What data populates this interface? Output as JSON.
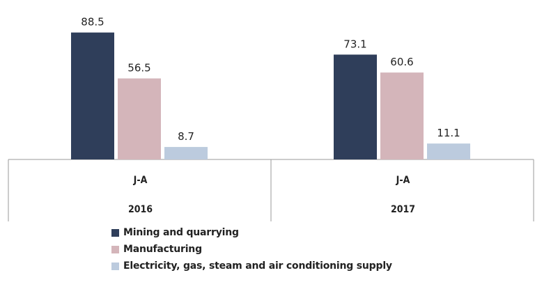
{
  "chart_data": {
    "type": "bar",
    "groups": [
      {
        "category": "J-A",
        "year": "2016"
      },
      {
        "category": "J-A",
        "year": "2017"
      }
    ],
    "series": [
      {
        "name": "Mining  and quarrying",
        "color": "#2f3e5a",
        "values": [
          88.5,
          73.1
        ]
      },
      {
        "name": "Manufacturing",
        "color": "#d4b5ba",
        "values": [
          56.5,
          60.6
        ]
      },
      {
        "name": "Electricity, gas, steam and air conditioning supply",
        "color": "#bccbde",
        "values": [
          8.7,
          11.1
        ]
      }
    ],
    "value_labels": [
      [
        "88.5",
        "73.1"
      ],
      [
        "56.5",
        "60.6"
      ],
      [
        "8.7",
        "11.1"
      ]
    ],
    "ylim": [
      0,
      100
    ],
    "grid": false,
    "legend_position": "bottom"
  }
}
